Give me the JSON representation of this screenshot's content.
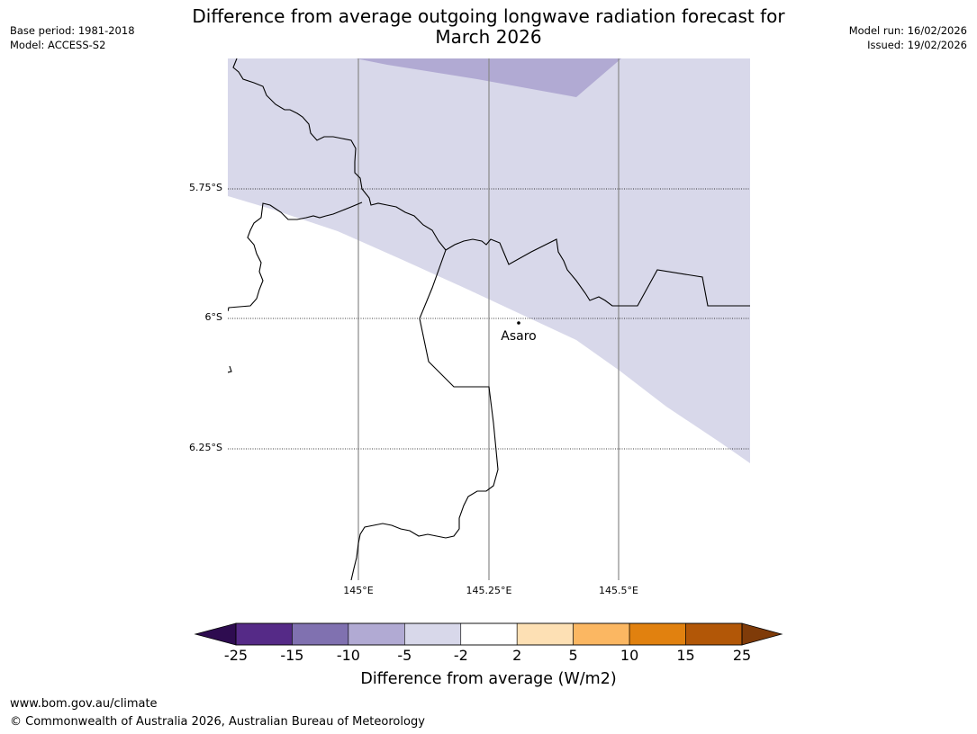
{
  "header": {
    "title_line1": "Difference from average outgoing longwave radiation forecast for",
    "title_line2": "March 2026",
    "base_period": "Base period: 1981-2018",
    "model": "Model: ACCESS-S2",
    "model_run": "Model run: 16/02/2026",
    "issued": "Issued: 19/02/2026"
  },
  "map": {
    "lat_labels": [
      "5.75°S",
      "6°S",
      "6.25°S"
    ],
    "lon_labels": [
      "145°E",
      "145.25°E",
      "145.5°E"
    ],
    "place": {
      "name": "Asaro",
      "lon": 145.3,
      "lat": -6.01
    },
    "shading": [
      {
        "category": "-5 to -2",
        "color": "#d8d8ea"
      },
      {
        "category": "-10 to -5",
        "color": "#b1aad3"
      }
    ]
  },
  "colorbar": {
    "title": "Difference from average (W/m2)",
    "tick_labels": [
      "-25",
      "-15",
      "-10",
      "-5",
      "-2",
      "2",
      "5",
      "10",
      "15",
      "25"
    ],
    "colors": [
      "#552a87",
      "#8071b0",
      "#b1aad3",
      "#d8d8ea",
      "#ffffff",
      "#fde0b4",
      "#fbb762",
      "#e1810f",
      "#b25707"
    ],
    "under_color": "#2e0c50",
    "over_color": "#7f3b09"
  },
  "footer": {
    "url": "www.bom.gov.au/climate",
    "copyright": "© Commonwealth of Australia 2026, Australian Bureau of Meteorology"
  }
}
